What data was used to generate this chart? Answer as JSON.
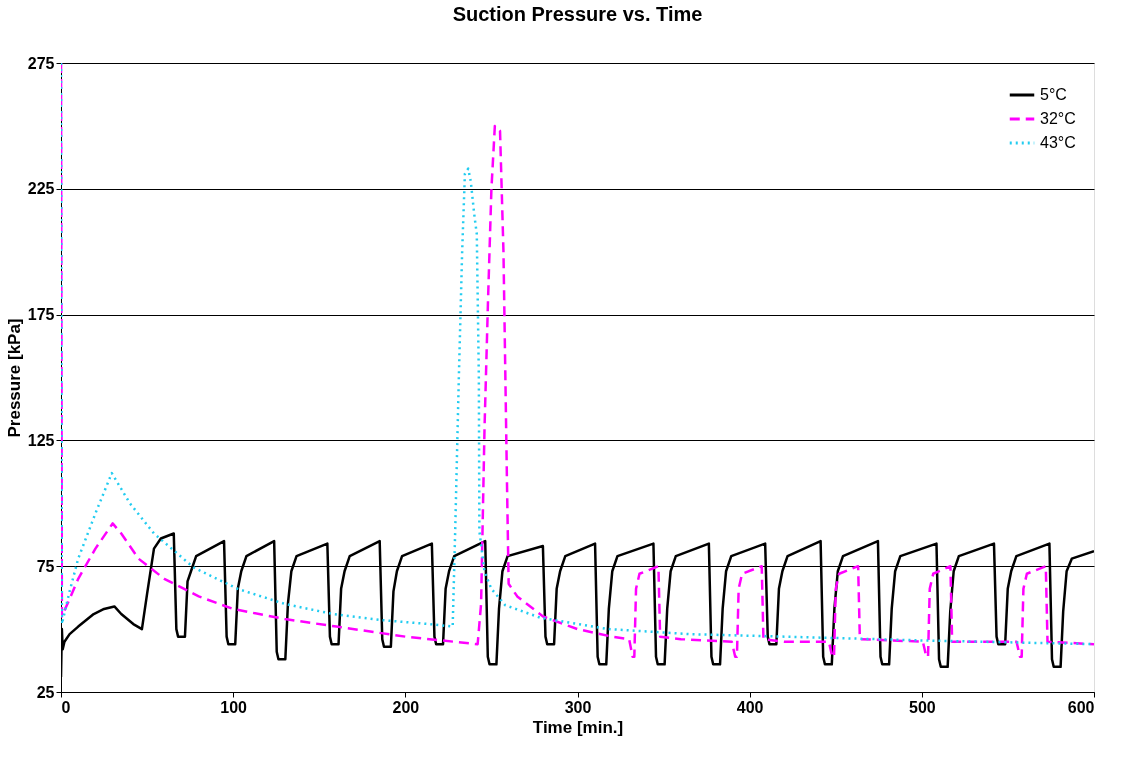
{
  "chart_data": {
    "type": "line",
    "title": "Suction Pressure vs. Time",
    "xlabel": "Time [min.]",
    "ylabel": "Pressure [kPa]",
    "xlim": [
      0,
      600
    ],
    "xticks": [
      0,
      100,
      200,
      300,
      400,
      500,
      600
    ],
    "ylim": [
      25,
      275
    ],
    "yticks": [
      25,
      75,
      125,
      175,
      225,
      275
    ],
    "grid": "y",
    "legend": "top right",
    "series": [
      {
        "name": "5°C",
        "color": "#000000",
        "line_style": "solid",
        "x": [
          0,
          0.5,
          1,
          2,
          5,
          10,
          19,
          25,
          31,
          35,
          42,
          47,
          50,
          54,
          58,
          65.5,
          67,
          68,
          72,
          73.5,
          75.5,
          78.5,
          94.7,
          96.2,
          97.2,
          101.2,
          102.7,
          104.7,
          107.7,
          123.8,
          125.3,
          126.3,
          130.3,
          131.8,
          133.8,
          136.8,
          154.7,
          156.2,
          157.2,
          161.2,
          162.7,
          164.7,
          167.7,
          185.1,
          186.6,
          187.6,
          191.6,
          193.1,
          195.1,
          198.1,
          215.4,
          216.9,
          217.9,
          221.9,
          223.4,
          225.4,
          228.4,
          246.4,
          247.9,
          248.9,
          252.9,
          254.4,
          256.4,
          259.4,
          279.9,
          281.4,
          282.4,
          286.4,
          287.9,
          289.9,
          292.9,
          310.2,
          311.7,
          312.7,
          316.7,
          318.2,
          320.2,
          323.2,
          344.1,
          345.6,
          346.6,
          350.6,
          352.1,
          354.1,
          357.1,
          376.3,
          377.8,
          378.8,
          382.8,
          384.3,
          386.3,
          389.3,
          409,
          410.5,
          411.5,
          415.5,
          417,
          419,
          422,
          441.2,
          442.7,
          443.7,
          447.7,
          449.2,
          451.2,
          454.2,
          474.5,
          476,
          477,
          481,
          482.5,
          484.5,
          487.5,
          508.5,
          510,
          511,
          515,
          516.5,
          518.5,
          521.5,
          541.9,
          543.4,
          544.4,
          548.4,
          549.9,
          551.9,
          554.9,
          574.1,
          575.6,
          576.6,
          580.6,
          582.1,
          584.1,
          587.1,
          600
        ],
        "values": [
          31,
          50,
          42,
          45,
          48,
          51,
          56,
          58,
          59,
          56,
          52,
          50,
          64,
          82,
          86,
          88,
          50,
          47,
          47,
          69,
          73,
          79,
          85,
          47,
          44,
          44,
          66,
          73,
          79,
          85,
          41,
          38,
          38,
          60,
          73,
          79,
          84,
          47,
          44,
          44,
          66,
          73,
          79,
          85,
          46,
          43,
          43,
          65,
          73,
          79,
          84,
          47,
          44,
          44,
          66,
          73,
          79,
          85,
          39,
          36,
          36,
          58,
          73,
          79,
          83,
          47,
          44,
          44,
          66,
          73,
          79,
          84,
          39,
          36,
          36,
          58,
          73,
          79,
          84,
          39,
          36,
          36,
          58,
          73,
          79,
          84,
          39,
          36,
          36,
          58,
          73,
          79,
          84,
          47,
          44,
          44,
          66,
          73,
          79,
          85,
          39,
          36,
          36,
          58,
          73,
          79,
          85,
          39,
          36,
          36,
          58,
          73,
          79,
          84,
          38,
          35,
          35,
          57,
          73,
          79,
          84,
          47,
          44,
          44,
          66,
          73,
          79,
          84,
          38,
          35,
          35,
          57,
          73,
          78,
          81
        ]
      },
      {
        "name": "32°C",
        "color": "#ff00ff",
        "line_style": "dashed",
        "x": [
          0,
          0.5,
          5,
          10,
          20,
          30,
          35,
          45,
          60,
          80,
          100,
          130,
          160,
          200,
          228,
          242,
          244,
          246,
          248,
          250,
          252,
          255,
          257,
          259,
          260,
          265,
          280,
          300,
          320,
          330,
          332,
          333,
          334,
          336,
          347,
          348,
          360,
          389.6,
          391.6,
          392.6,
          393.6,
          395.6,
          407,
          408,
          420,
          446,
          448,
          449,
          450,
          452,
          463,
          464,
          500.6,
          502.6,
          503.6,
          504.6,
          506.6,
          516.6,
          517.6,
          555,
          557,
          558,
          559,
          561,
          572,
          573,
          600
        ],
        "values": [
          275,
          55,
          62,
          70,
          82,
          92,
          88,
          78,
          70,
          63,
          58,
          54,
          51,
          47,
          45,
          44,
          60,
          130,
          180,
          225,
          250,
          248,
          200,
          110,
          68,
          63,
          55,
          50,
          47,
          46,
          39,
          39,
          66,
          72,
          75,
          47,
          46,
          45,
          39,
          39,
          66,
          72,
          75,
          46,
          45,
          45,
          39,
          39,
          66,
          72,
          75,
          46,
          45,
          39,
          39,
          66,
          72,
          75,
          45,
          45,
          39,
          39,
          66,
          72,
          75,
          45,
          44
        ]
      },
      {
        "name": "43°C",
        "color": "#22ccf0",
        "line_style": "dotted",
        "x": [
          0,
          0.5,
          5,
          10,
          20,
          29.5,
          40,
          54,
          77,
          102.6,
          130,
          158,
          186,
          214,
          227.5,
          229,
          231,
          233,
          234.6,
          236.5,
          238,
          240,
          241.5,
          242.7,
          243,
          246,
          250,
          258,
          278.5,
          318,
          364.7,
          420.5,
          500,
          600
        ],
        "values": [
          275,
          52,
          65,
          78,
          96,
          112,
          100,
          88,
          74.5,
          66,
          60,
          56,
          53.6,
          52,
          51,
          90,
          148,
          200,
          231,
          233,
          228,
          215,
          207,
          150,
          89,
          72.7,
          66,
          59.5,
          54.5,
          50,
          48,
          47,
          45.5,
          44
        ]
      }
    ]
  }
}
